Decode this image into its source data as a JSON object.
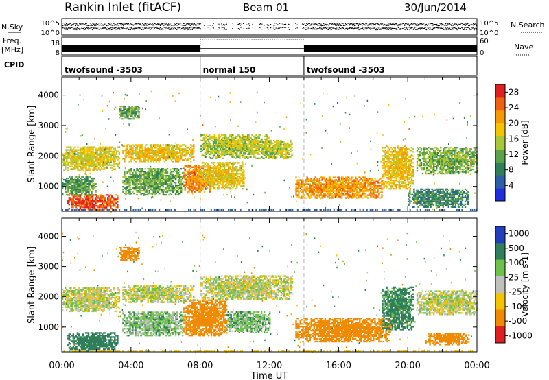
{
  "header": {
    "station": "Rankin Inlet (fitACF)",
    "beam": "Beam 01",
    "date": "30/Jun/2014"
  },
  "top_panels": {
    "nsky_label": "N.Sky",
    "nsky_ticks": [
      "10^5",
      "10^0"
    ],
    "nsearch_label": "N.Search",
    "nsearch_ticks": [
      "10^5",
      "10^0"
    ],
    "freq_label": "Freq.",
    "freq_unit": "[MHz]",
    "freq_ticks": [
      "18",
      "8"
    ],
    "nave_label": "Nave",
    "nave_ticks": [
      "60",
      "0"
    ],
    "cpid_label": "CPID",
    "cpid_segments": [
      {
        "label": "twofsound -3503",
        "start_h": 0,
        "end_h": 8
      },
      {
        "label": "normal 150",
        "start_h": 8,
        "end_h": 14
      },
      {
        "label": "twofsound -3503",
        "start_h": 14,
        "end_h": 24
      }
    ]
  },
  "x_axis": {
    "label": "Time UT",
    "ticks": [
      "00:00",
      "04:00",
      "08:00",
      "12:00",
      "16:00",
      "20:00",
      "00:00"
    ]
  },
  "chart_data": [
    {
      "type": "heatmap",
      "name": "power",
      "xlabel": "Time UT",
      "ylabel": "Slant Range [km]",
      "xlim_h": [
        0,
        24
      ],
      "ylim": [
        180,
        4600
      ],
      "yticks": [
        1000,
        2000,
        3000,
        4000
      ],
      "colorbar": {
        "label": "Power [dB]",
        "ticks": [
          "4",
          "8",
          "12",
          "16",
          "20",
          "24",
          "28"
        ],
        "range": [
          0,
          30
        ],
        "colors": [
          "#1f2fe0",
          "#2d5fa8",
          "#2f7f5a",
          "#5aa34a",
          "#a8c83a",
          "#f5c400",
          "#f59a00",
          "#f06010",
          "#e02020"
        ]
      },
      "regions": [
        {
          "t0": 0.0,
          "t1": 3.3,
          "r0": 1500,
          "r1": 2300,
          "v": 17
        },
        {
          "t0": 0.3,
          "t1": 3.2,
          "r0": 200,
          "r1": 700,
          "v": 26
        },
        {
          "t0": 0.0,
          "t1": 2.0,
          "r0": 700,
          "r1": 1300,
          "v": 11
        },
        {
          "t0": 3.3,
          "t1": 4.5,
          "r0": 3200,
          "r1": 3650,
          "v": 11
        },
        {
          "t0": 3.5,
          "t1": 7.6,
          "r0": 1800,
          "r1": 2350,
          "v": 19
        },
        {
          "t0": 3.5,
          "t1": 7.0,
          "r0": 700,
          "r1": 1600,
          "v": 12
        },
        {
          "t0": 7.0,
          "t1": 8.6,
          "r0": 800,
          "r1": 1700,
          "v": 23
        },
        {
          "t0": 8.0,
          "t1": 12.0,
          "r0": 1900,
          "r1": 2700,
          "v": 15
        },
        {
          "t0": 11.5,
          "t1": 13.3,
          "r0": 1900,
          "r1": 2500,
          "v": 16
        },
        {
          "t0": 8.0,
          "t1": 10.5,
          "r0": 900,
          "r1": 1800,
          "v": 18
        },
        {
          "t0": 13.5,
          "t1": 18.5,
          "r0": 600,
          "r1": 1300,
          "v": 22
        },
        {
          "t0": 18.5,
          "t1": 20.3,
          "r0": 900,
          "r1": 2300,
          "v": 19
        },
        {
          "t0": 20.5,
          "t1": 24.0,
          "r0": 1400,
          "r1": 2300,
          "v": 13
        },
        {
          "t0": 20.0,
          "t1": 23.5,
          "r0": 300,
          "r1": 900,
          "v": 9
        }
      ]
    },
    {
      "type": "heatmap",
      "name": "velocity",
      "xlabel": "Time UT",
      "ylabel": "Slant Range [km]",
      "xlim_h": [
        0,
        24
      ],
      "ylim": [
        180,
        4600
      ],
      "yticks": [
        1000,
        2000,
        3000,
        4000
      ],
      "colorbar": {
        "label": "Velocity [m s-1]",
        "ticks": [
          "1000",
          "500",
          "100",
          "25",
          "-25",
          "-100",
          "-500",
          "-1000"
        ],
        "classes": [
          {
            "max": 1200,
            "min": 500,
            "color": "#1f3fbf"
          },
          {
            "max": 500,
            "min": 100,
            "color": "#2f7f5a"
          },
          {
            "max": 100,
            "min": 25,
            "color": "#6cc24a"
          },
          {
            "max": 25,
            "min": -25,
            "color": "#c0c0bc"
          },
          {
            "max": -25,
            "min": -100,
            "color": "#f5c400"
          },
          {
            "max": -100,
            "min": -500,
            "color": "#f08a00"
          },
          {
            "max": -500,
            "min": -1200,
            "color": "#e02020"
          }
        ]
      },
      "regions": [
        {
          "t0": 0.0,
          "t1": 3.3,
          "r0": 1500,
          "r1": 2300,
          "v": 0
        },
        {
          "t0": 0.3,
          "t1": 3.2,
          "r0": 200,
          "r1": 800,
          "v": 200
        },
        {
          "t0": 3.3,
          "t1": 4.5,
          "r0": 3200,
          "r1": 3650,
          "v": -300
        },
        {
          "t0": 3.5,
          "t1": 7.6,
          "r0": 1800,
          "r1": 2350,
          "v": 0
        },
        {
          "t0": 3.5,
          "t1": 7.0,
          "r0": 700,
          "r1": 1500,
          "v": 60
        },
        {
          "t0": 7.0,
          "t1": 9.5,
          "r0": 700,
          "r1": 1900,
          "v": -300
        },
        {
          "t0": 8.0,
          "t1": 13.3,
          "r0": 1900,
          "r1": 2700,
          "v": 0
        },
        {
          "t0": 9.5,
          "t1": 12.0,
          "r0": 800,
          "r1": 1500,
          "v": 60
        },
        {
          "t0": 13.5,
          "t1": 19.0,
          "r0": 500,
          "r1": 1300,
          "v": -300
        },
        {
          "t0": 18.5,
          "t1": 20.3,
          "r0": 900,
          "r1": 2300,
          "v": 150
        },
        {
          "t0": 20.5,
          "t1": 24.0,
          "r0": 1400,
          "r1": 2200,
          "v": 0
        },
        {
          "t0": 21.0,
          "t1": 23.5,
          "r0": 400,
          "r1": 800,
          "v": -300
        }
      ]
    }
  ]
}
